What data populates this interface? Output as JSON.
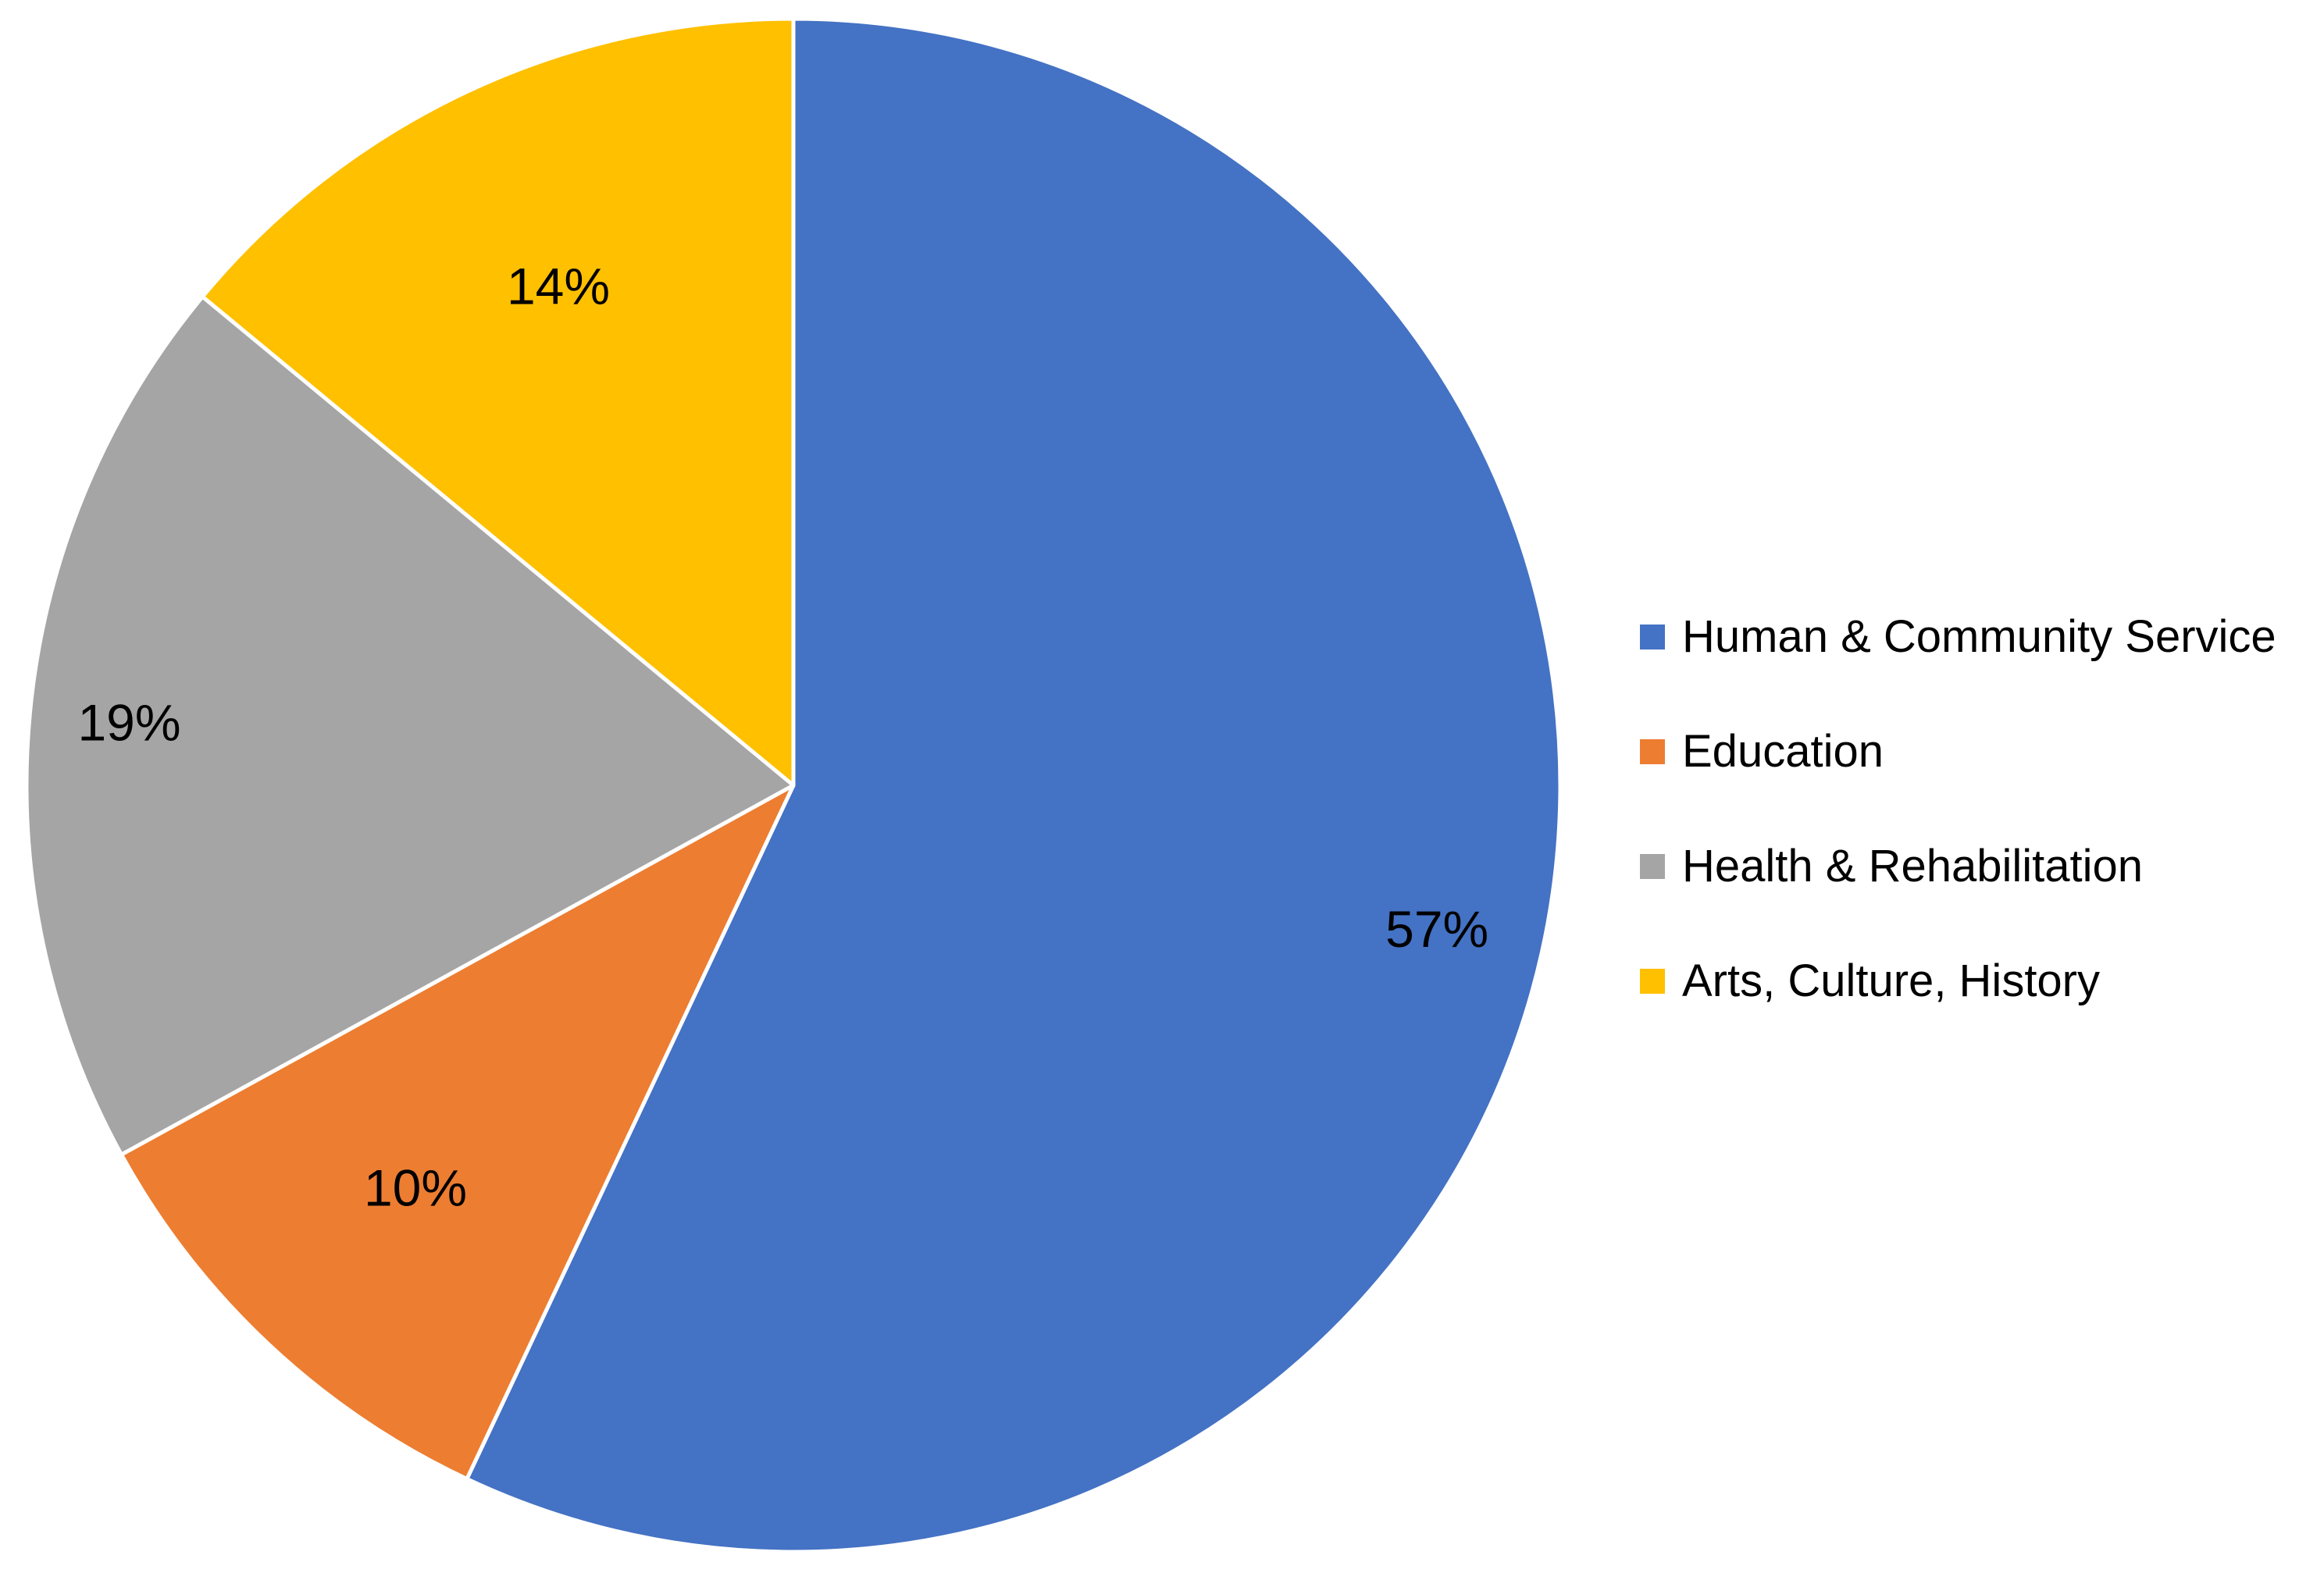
{
  "chart_data": {
    "type": "pie",
    "categories": [
      "Human & Community Service",
      "Education",
      "Health & Rehabilitation",
      "Arts, Culture, History"
    ],
    "values": [
      57,
      10,
      19,
      14
    ],
    "labels": [
      "57%",
      "10%",
      "19%",
      "14%"
    ],
    "colors": [
      "#4472C4",
      "#ED7D31",
      "#A5A5A5",
      "#FFC000"
    ],
    "start_angle_deg": 0,
    "direction": "clockwise",
    "legend_position": "right"
  }
}
